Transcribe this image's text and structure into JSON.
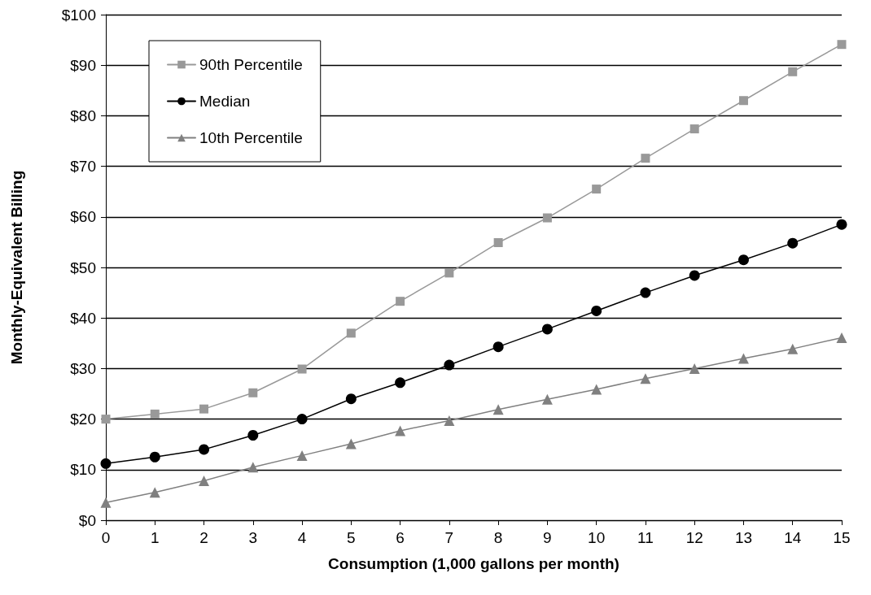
{
  "chart_data": {
    "type": "line",
    "xlabel": "Consumption (1,000 gallons per month)",
    "ylabel": "Monthly-Equivalent Billing",
    "x": [
      0,
      1,
      2,
      3,
      4,
      5,
      6,
      7,
      8,
      9,
      10,
      11,
      12,
      13,
      14,
      15
    ],
    "series": [
      {
        "name": "90th Percentile",
        "color": "#999999",
        "marker": "square",
        "values": [
          20,
          21,
          22,
          25.2,
          29.9,
          37,
          43.3,
          48.9,
          54.9,
          59.8,
          65.5,
          71.6,
          77.4,
          83,
          88.7,
          94.1
        ]
      },
      {
        "name": "Median",
        "color": "#000000",
        "marker": "circle",
        "values": [
          11.2,
          12.5,
          14,
          16.8,
          20,
          24,
          27.2,
          30.7,
          34.3,
          37.8,
          41.4,
          45,
          48.4,
          51.5,
          54.8,
          58.5
        ]
      },
      {
        "name": "10th Percentile",
        "color": "#808080",
        "marker": "triangle",
        "values": [
          3.5,
          5.5,
          7.8,
          10.5,
          12.8,
          15.1,
          17.7,
          19.7,
          21.9,
          23.9,
          25.9,
          28,
          30,
          32,
          33.9,
          36.1
        ]
      }
    ],
    "xlim": [
      0,
      15
    ],
    "xticks": [
      0,
      1,
      2,
      3,
      4,
      5,
      6,
      7,
      8,
      9,
      10,
      11,
      12,
      13,
      14,
      15
    ],
    "ylim": [
      0,
      100
    ],
    "yticks": [
      {
        "value": 0,
        "label": "$0"
      },
      {
        "value": 10,
        "label": "$10"
      },
      {
        "value": 20,
        "label": "$20"
      },
      {
        "value": 30,
        "label": "$30"
      },
      {
        "value": 40,
        "label": "$40"
      },
      {
        "value": 50,
        "label": "$50"
      },
      {
        "value": 60,
        "label": "$60"
      },
      {
        "value": 70,
        "label": "$70"
      },
      {
        "value": 80,
        "label": "$80"
      },
      {
        "value": 90,
        "label": "$90"
      },
      {
        "value": 100,
        "label": "$100"
      }
    ],
    "grid": "y",
    "legend": "top left",
    "line_style": "solid"
  }
}
